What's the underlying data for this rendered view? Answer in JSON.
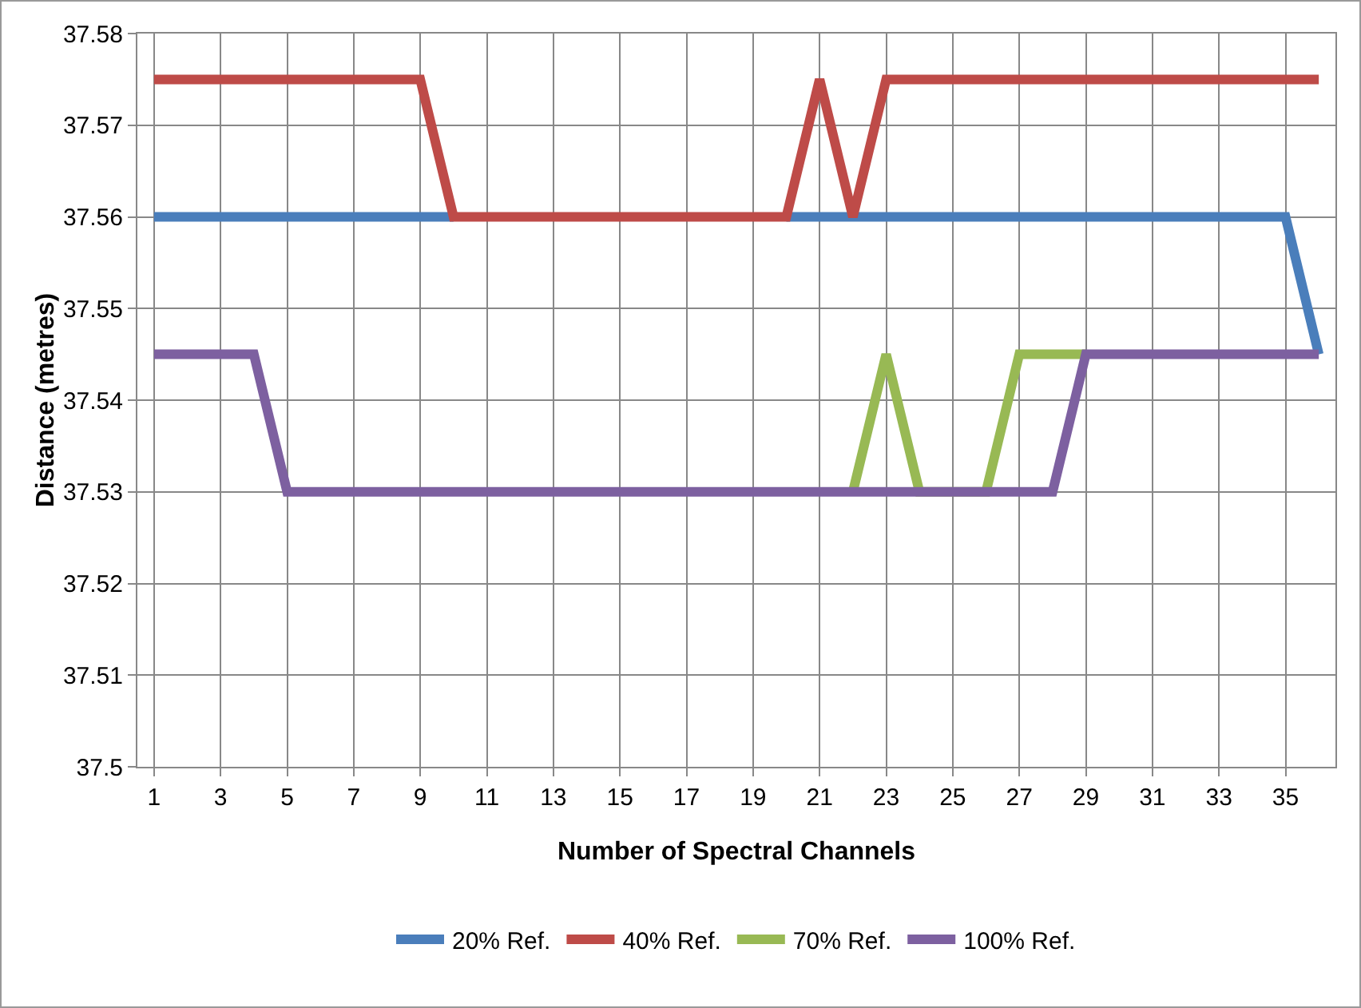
{
  "chart_data": {
    "type": "line",
    "xlabel": "Number of Spectral Channels",
    "ylabel": "Distance (metres)",
    "x": [
      1,
      2,
      3,
      4,
      5,
      6,
      7,
      8,
      9,
      10,
      11,
      12,
      13,
      14,
      15,
      16,
      17,
      18,
      19,
      20,
      21,
      22,
      23,
      24,
      25,
      26,
      27,
      28,
      29,
      30,
      31,
      32,
      33,
      34,
      35,
      36
    ],
    "xlim": [
      0.5,
      36.5
    ],
    "xticks": [
      1,
      3,
      5,
      7,
      9,
      11,
      13,
      15,
      17,
      19,
      21,
      23,
      25,
      27,
      29,
      31,
      33,
      35
    ],
    "ylim": [
      37.5,
      37.58
    ],
    "yticks": [
      37.5,
      37.51,
      37.52,
      37.53,
      37.54,
      37.55,
      37.56,
      37.57,
      37.58
    ],
    "grid": true,
    "legend": "bottom",
    "marker": "none",
    "line_style": "solid",
    "series": [
      {
        "name": "20% Ref.",
        "color": "#4a7ebb",
        "values": [
          37.56,
          37.56,
          37.56,
          37.56,
          37.56,
          37.56,
          37.56,
          37.56,
          37.56,
          37.56,
          null,
          null,
          null,
          null,
          null,
          null,
          null,
          null,
          null,
          37.56,
          37.56,
          37.56,
          37.56,
          37.56,
          37.56,
          37.56,
          37.56,
          37.56,
          37.56,
          37.56,
          37.56,
          37.56,
          37.56,
          37.56,
          37.56,
          37.545
        ]
      },
      {
        "name": "40% Ref.",
        "color": "#be4b48",
        "values": [
          37.575,
          37.575,
          37.575,
          37.575,
          37.575,
          37.575,
          37.575,
          37.575,
          37.575,
          37.56,
          37.56,
          37.56,
          37.56,
          37.56,
          37.56,
          37.56,
          37.56,
          37.56,
          37.56,
          37.56,
          37.575,
          37.56,
          37.575,
          37.575,
          37.575,
          37.575,
          37.575,
          37.575,
          37.575,
          37.575,
          37.575,
          37.575,
          37.575,
          37.575,
          37.575,
          37.575
        ]
      },
      {
        "name": "70% Ref.",
        "color": "#98b954",
        "values": [
          null,
          null,
          null,
          null,
          null,
          null,
          null,
          null,
          null,
          null,
          null,
          null,
          null,
          null,
          null,
          null,
          null,
          null,
          null,
          null,
          null,
          37.53,
          37.545,
          37.53,
          37.53,
          37.53,
          37.545,
          37.545,
          37.545,
          null,
          null,
          null,
          null,
          null,
          null,
          null
        ]
      },
      {
        "name": "100% Ref.",
        "color": "#7d60a0",
        "values": [
          37.545,
          37.545,
          37.545,
          37.545,
          37.53,
          37.53,
          37.53,
          37.53,
          37.53,
          37.53,
          37.53,
          37.53,
          37.53,
          37.53,
          37.53,
          37.53,
          37.53,
          37.53,
          37.53,
          37.53,
          37.53,
          37.53,
          37.53,
          37.53,
          37.53,
          37.53,
          37.53,
          37.53,
          37.545,
          37.545,
          37.545,
          37.545,
          37.545,
          37.545,
          37.545,
          37.545
        ]
      }
    ]
  }
}
